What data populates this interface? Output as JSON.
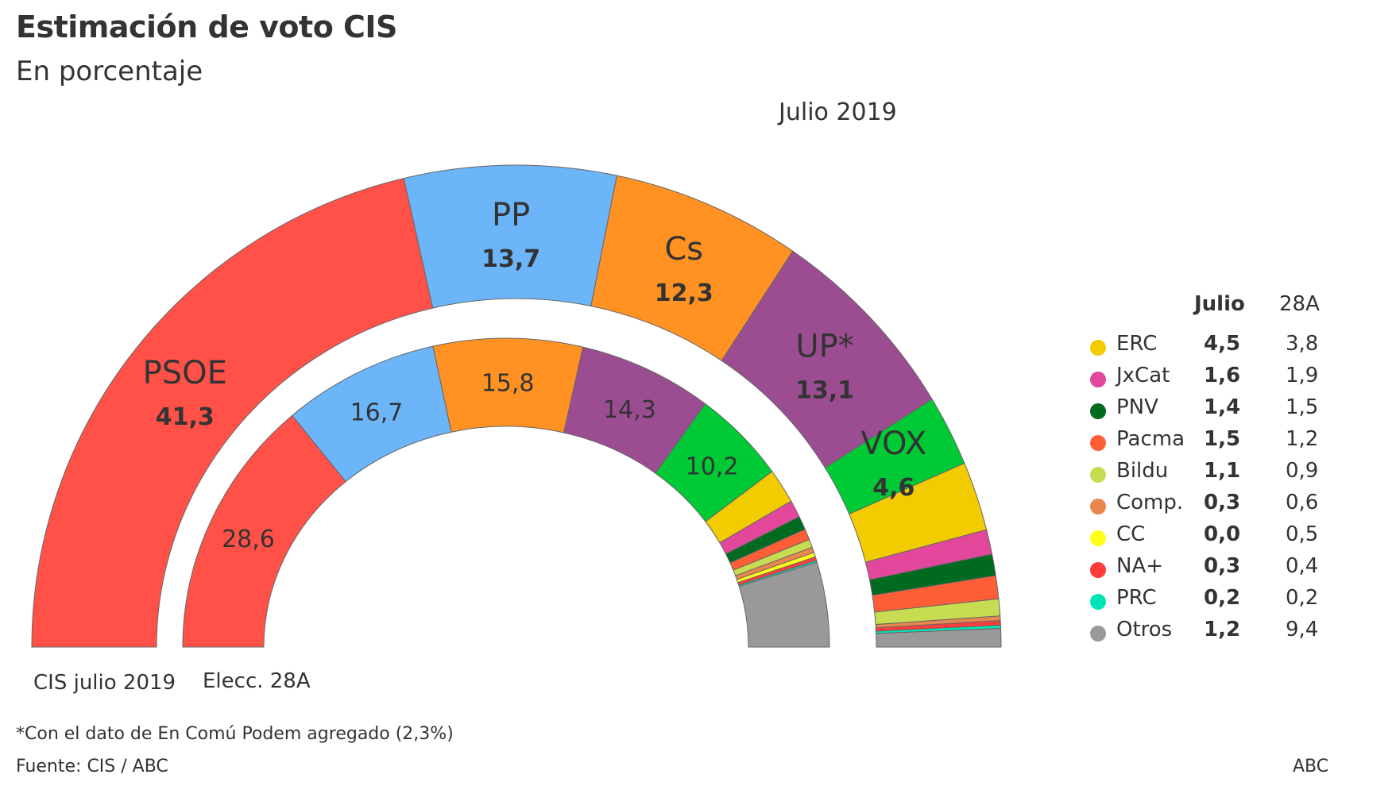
{
  "header": {
    "title": "Estimación de voto CIS",
    "subtitle": "En porcentaje",
    "period": "Julio 2019"
  },
  "ring_labels": {
    "outer": "CIS julio 2019",
    "inner": "Elecc. 28A"
  },
  "legend": {
    "col_julio": "Julio",
    "col_28a": "28A"
  },
  "footer": {
    "note": "*Con el dato de En Comú Podem agregado (2,3%)",
    "source": "Fuente: CIS / ABC",
    "brand": "ABC"
  },
  "chart_data": {
    "type": "pie",
    "subtype": "nested-semicircle",
    "title": "Estimación de voto CIS",
    "subtitle": "En porcentaje",
    "series": [
      {
        "name": "CIS julio 2019",
        "ring": "outer"
      },
      {
        "name": "Elecc. 28A",
        "ring": "inner"
      }
    ],
    "parties": [
      {
        "name": "PSOE",
        "color": "#FF5148",
        "julio": 41.3,
        "a28": 28.6,
        "julio_label": "41,3",
        "a28_label": "28,6",
        "show_name": true,
        "in_legend": false
      },
      {
        "name": "PP",
        "color": "#6BB5F8",
        "julio": 13.7,
        "a28": 16.7,
        "julio_label": "13,7",
        "a28_label": "16,7",
        "show_name": true,
        "in_legend": false
      },
      {
        "name": "Cs",
        "color": "#FF9223",
        "julio": 12.3,
        "a28": 15.8,
        "julio_label": "12,3",
        "a28_label": "15,8",
        "show_name": true,
        "in_legend": false
      },
      {
        "name": "UP*",
        "color": "#9C4D92",
        "julio": 13.1,
        "a28": 14.3,
        "julio_label": "13,1",
        "a28_label": "14,3",
        "show_name": true,
        "in_legend": false
      },
      {
        "name": "VOX",
        "color": "#00C936",
        "julio": 4.6,
        "a28": 10.2,
        "julio_label": "4,6",
        "a28_label": "10,2",
        "show_name": true,
        "in_legend": false
      },
      {
        "name": "ERC",
        "color": "#F2CC00",
        "julio": 4.5,
        "a28": 3.8,
        "julio_label": "4,5",
        "a28_label": "3,8",
        "show_name": false,
        "in_legend": true
      },
      {
        "name": "JxCat",
        "color": "#E2479C",
        "julio": 1.6,
        "a28": 1.9,
        "julio_label": "1,6",
        "a28_label": "1,9",
        "show_name": false,
        "in_legend": true
      },
      {
        "name": "PNV",
        "color": "#006A20",
        "julio": 1.4,
        "a28": 1.5,
        "julio_label": "1,4",
        "a28_label": "1,5",
        "show_name": false,
        "in_legend": true
      },
      {
        "name": "Pacma",
        "color": "#FF5E36",
        "julio": 1.5,
        "a28": 1.2,
        "julio_label": "1,5",
        "a28_label": "1,2",
        "show_name": false,
        "in_legend": true
      },
      {
        "name": "Bildu",
        "color": "#C8DC52",
        "julio": 1.1,
        "a28": 0.9,
        "julio_label": "1,1",
        "a28_label": "0,9",
        "show_name": false,
        "in_legend": true
      },
      {
        "name": "Comp.",
        "color": "#E8864E",
        "julio": 0.3,
        "a28": 0.6,
        "julio_label": "0,3",
        "a28_label": "0,6",
        "show_name": false,
        "in_legend": true
      },
      {
        "name": "CC",
        "color": "#FFFF1A",
        "julio": 0.0,
        "a28": 0.5,
        "julio_label": "0,0",
        "a28_label": "0,5",
        "show_name": false,
        "in_legend": true
      },
      {
        "name": "NA+",
        "color": "#FF3B3B",
        "julio": 0.3,
        "a28": 0.4,
        "julio_label": "0,3",
        "a28_label": "0,4",
        "show_name": false,
        "in_legend": true
      },
      {
        "name": "PRC",
        "color": "#00E5B8",
        "julio": 0.2,
        "a28": 0.2,
        "julio_label": "0,2",
        "a28_label": "0,2",
        "show_name": false,
        "in_legend": true
      },
      {
        "name": "Otros",
        "color": "#999999",
        "julio": 1.2,
        "a28": 9.4,
        "julio_label": "1,2",
        "a28_label": "9,4",
        "show_name": false,
        "in_legend": true
      }
    ],
    "legend_position": "right"
  }
}
